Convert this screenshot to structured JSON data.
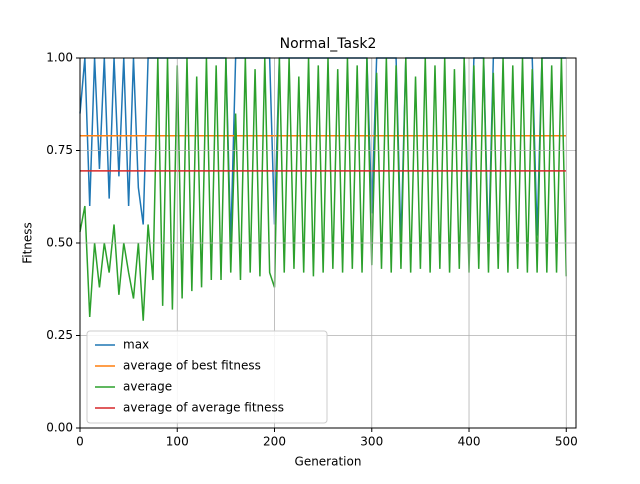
{
  "chart_data": {
    "type": "line",
    "title": "Normal_Task2",
    "x_label": "Generation",
    "y_label": "Fitness",
    "xlim": [
      0,
      510
    ],
    "ylim": [
      0,
      1
    ],
    "xticks": [
      0,
      100,
      200,
      300,
      400,
      500
    ],
    "yticks": [
      {
        "value": 0,
        "label": "0.00"
      },
      {
        "value": 0.25,
        "label": "0.25"
      },
      {
        "value": 0.5,
        "label": "0.50"
      },
      {
        "value": 0.75,
        "label": "0.75"
      },
      {
        "value": 1,
        "label": "1.00"
      }
    ],
    "grid": true,
    "legend": "lower left",
    "x": [
      0,
      5,
      10,
      15,
      20,
      25,
      30,
      35,
      40,
      45,
      50,
      55,
      60,
      65,
      70,
      75,
      80,
      85,
      90,
      95,
      100,
      105,
      110,
      115,
      120,
      125,
      130,
      135,
      140,
      145,
      150,
      155,
      160,
      165,
      170,
      175,
      180,
      185,
      190,
      195,
      200,
      205,
      210,
      215,
      220,
      225,
      230,
      235,
      240,
      245,
      250,
      255,
      260,
      265,
      270,
      275,
      280,
      285,
      290,
      295,
      300,
      305,
      310,
      315,
      320,
      325,
      330,
      335,
      340,
      345,
      350,
      355,
      360,
      365,
      370,
      375,
      380,
      385,
      390,
      395,
      400,
      405,
      410,
      415,
      420,
      425,
      430,
      435,
      440,
      445,
      450,
      455,
      460,
      465,
      470,
      475,
      480,
      485,
      490,
      495,
      500
    ],
    "series": [
      {
        "name": "max",
        "color": "#1f77b4",
        "values": [
          0.85,
          1,
          0.6,
          1,
          0.7,
          1,
          0.62,
          1,
          0.68,
          1,
          0.6,
          1,
          0.65,
          0.55,
          1,
          1,
          1,
          1,
          1,
          1,
          1,
          1,
          1,
          1,
          1,
          1,
          1,
          1,
          1,
          1,
          1,
          0.5,
          1,
          1,
          1,
          1,
          1,
          1,
          1,
          1,
          0.55,
          1,
          1,
          1,
          1,
          1,
          1,
          1,
          1,
          1,
          1,
          1,
          1,
          1,
          1,
          1,
          1,
          1,
          1,
          1,
          0.58,
          1,
          1,
          1,
          1,
          1,
          0.5,
          1,
          1,
          1,
          1,
          1,
          1,
          1,
          1,
          1,
          1,
          1,
          1,
          1,
          0.5,
          1,
          1,
          1,
          0.48,
          1,
          1,
          1,
          1,
          1,
          1,
          1,
          1,
          1,
          0.52,
          1,
          1,
          1,
          1,
          1,
          1
        ]
      },
      {
        "name": "average of best fitness",
        "color": "#ff7f0e",
        "x": [
          0,
          500
        ],
        "values": [
          0.79,
          0.79
        ]
      },
      {
        "name": "average",
        "color": "#2ca02c",
        "values": [
          0.53,
          0.6,
          0.3,
          0.5,
          0.38,
          0.5,
          0.42,
          0.55,
          0.36,
          0.5,
          0.42,
          0.35,
          0.5,
          0.29,
          0.55,
          0.4,
          1,
          0.33,
          1,
          0.32,
          0.98,
          0.35,
          1,
          0.37,
          0.95,
          0.38,
          1,
          0.4,
          0.98,
          0.4,
          1,
          0.42,
          0.85,
          0.4,
          1,
          0.42,
          0.97,
          0.41,
          1,
          0.42,
          0.38,
          1,
          0.42,
          1,
          0.43,
          0.95,
          0.42,
          1,
          0.41,
          0.98,
          0.42,
          1,
          0.43,
          0.97,
          0.42,
          1,
          0.43,
          0.98,
          0.42,
          1,
          0.44,
          0.96,
          0.43,
          1,
          0.42,
          0.98,
          0.43,
          1,
          0.42,
          0.95,
          0.43,
          1,
          0.42,
          0.98,
          0.43,
          1,
          0.42,
          0.97,
          0.43,
          1,
          0.42,
          0.98,
          0.43,
          1,
          0.42,
          0.96,
          0.43,
          1,
          0.42,
          0.98,
          0.43,
          1,
          0.42,
          0.97,
          0.42,
          1,
          0.42,
          0.98,
          0.42,
          1,
          0.41
        ]
      },
      {
        "name": "average of average fitness",
        "color": "#d62728",
        "x": [
          0,
          500
        ],
        "values": [
          0.695,
          0.695
        ]
      }
    ]
  }
}
